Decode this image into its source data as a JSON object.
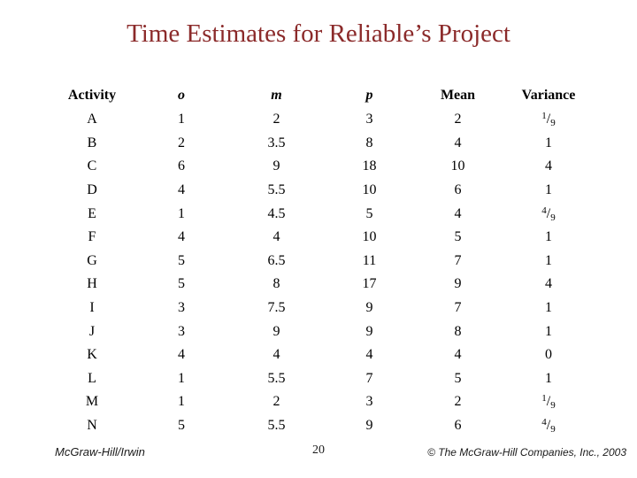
{
  "slide": {
    "title": "Time Estimates for Reliable’s Project",
    "title_color": "#8B2A2A"
  },
  "table": {
    "headers": [
      "Activity",
      "o",
      "m",
      "p",
      "Mean",
      "Variance"
    ],
    "rows": [
      {
        "activity": "A",
        "o": "1",
        "m": "2",
        "p": "3",
        "mean": "2",
        "variance": "1/9"
      },
      {
        "activity": "B",
        "o": "2",
        "m": "3.5",
        "p": "8",
        "mean": "4",
        "variance": "1"
      },
      {
        "activity": "C",
        "o": "6",
        "m": "9",
        "p": "18",
        "mean": "10",
        "variance": "4"
      },
      {
        "activity": "D",
        "o": "4",
        "m": "5.5",
        "p": "10",
        "mean": "6",
        "variance": "1"
      },
      {
        "activity": "E",
        "o": "1",
        "m": "4.5",
        "p": "5",
        "mean": "4",
        "variance": "4/9"
      },
      {
        "activity": "F",
        "o": "4",
        "m": "4",
        "p": "10",
        "mean": "5",
        "variance": "1"
      },
      {
        "activity": "G",
        "o": "5",
        "m": "6.5",
        "p": "11",
        "mean": "7",
        "variance": "1"
      },
      {
        "activity": "H",
        "o": "5",
        "m": "8",
        "p": "17",
        "mean": "9",
        "variance": "4"
      },
      {
        "activity": "I",
        "o": "3",
        "m": "7.5",
        "p": "9",
        "mean": "7",
        "variance": "1"
      },
      {
        "activity": "J",
        "o": "3",
        "m": "9",
        "p": "9",
        "mean": "8",
        "variance": "1"
      },
      {
        "activity": "K",
        "o": "4",
        "m": "4",
        "p": "4",
        "mean": "4",
        "variance": "0"
      },
      {
        "activity": "L",
        "o": "1",
        "m": "5.5",
        "p": "7",
        "mean": "5",
        "variance": "1"
      },
      {
        "activity": "M",
        "o": "1",
        "m": "2",
        "p": "3",
        "mean": "2",
        "variance": "1/9"
      },
      {
        "activity": "N",
        "o": "5",
        "m": "5.5",
        "p": "9",
        "mean": "6",
        "variance": "4/9"
      }
    ]
  },
  "footer": {
    "left": "McGraw-Hill/Irwin",
    "page_number": "20",
    "right": "© The McGraw-Hill Companies, Inc., 2003"
  }
}
